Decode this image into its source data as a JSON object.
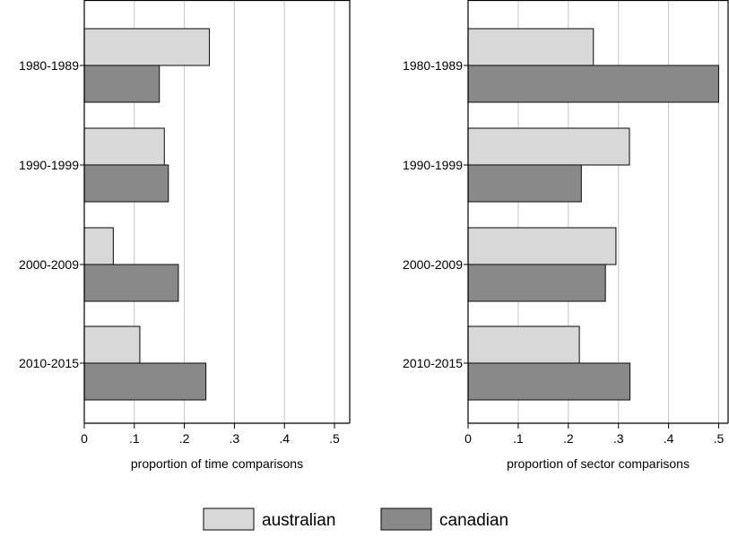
{
  "colors": {
    "australian": "#d8d8d8",
    "canadian": "#898989",
    "gridline": "#c4c4c4",
    "bar_stroke": "#1a1a1a",
    "frame": "#000000"
  },
  "legend": {
    "placement": "bottom",
    "items": [
      {
        "label": "australian",
        "color_key": "australian"
      },
      {
        "label": "canadian",
        "color_key": "canadian"
      }
    ]
  },
  "chart_data": [
    {
      "type": "bar",
      "orientation": "horizontal",
      "xlabel": "proportion of time comparisons",
      "ylabel": "",
      "xlim": [
        0,
        0.53
      ],
      "xticks": [
        0,
        0.1,
        0.2,
        0.3,
        0.4,
        0.5
      ],
      "xtick_labels": [
        "0",
        ".1",
        ".2",
        ".3",
        ".4",
        ".5"
      ],
      "grid": true,
      "categories": [
        "1980-1989",
        "1990-1999",
        "2000-2009",
        "2010-2015"
      ],
      "series": [
        {
          "name": "australian",
          "values": [
            0.25,
            0.16,
            0.058,
            0.111
          ]
        },
        {
          "name": "canadian",
          "values": [
            0.15,
            0.168,
            0.188,
            0.243
          ]
        }
      ]
    },
    {
      "type": "bar",
      "orientation": "horizontal",
      "xlabel": "proportion of sector comparisons",
      "ylabel": "",
      "xlim": [
        0,
        0.52
      ],
      "xticks": [
        0,
        0.1,
        0.2,
        0.3,
        0.4,
        0.5
      ],
      "xtick_labels": [
        "0",
        ".1",
        ".2",
        ".3",
        ".4",
        ".5"
      ],
      "grid": true,
      "categories": [
        "1980-1989",
        "1990-1999",
        "2000-2009",
        "2010-2015"
      ],
      "series": [
        {
          "name": "australian",
          "values": [
            0.25,
            0.322,
            0.295,
            0.222
          ]
        },
        {
          "name": "canadian",
          "values": [
            0.5,
            0.226,
            0.274,
            0.323
          ]
        }
      ]
    }
  ]
}
